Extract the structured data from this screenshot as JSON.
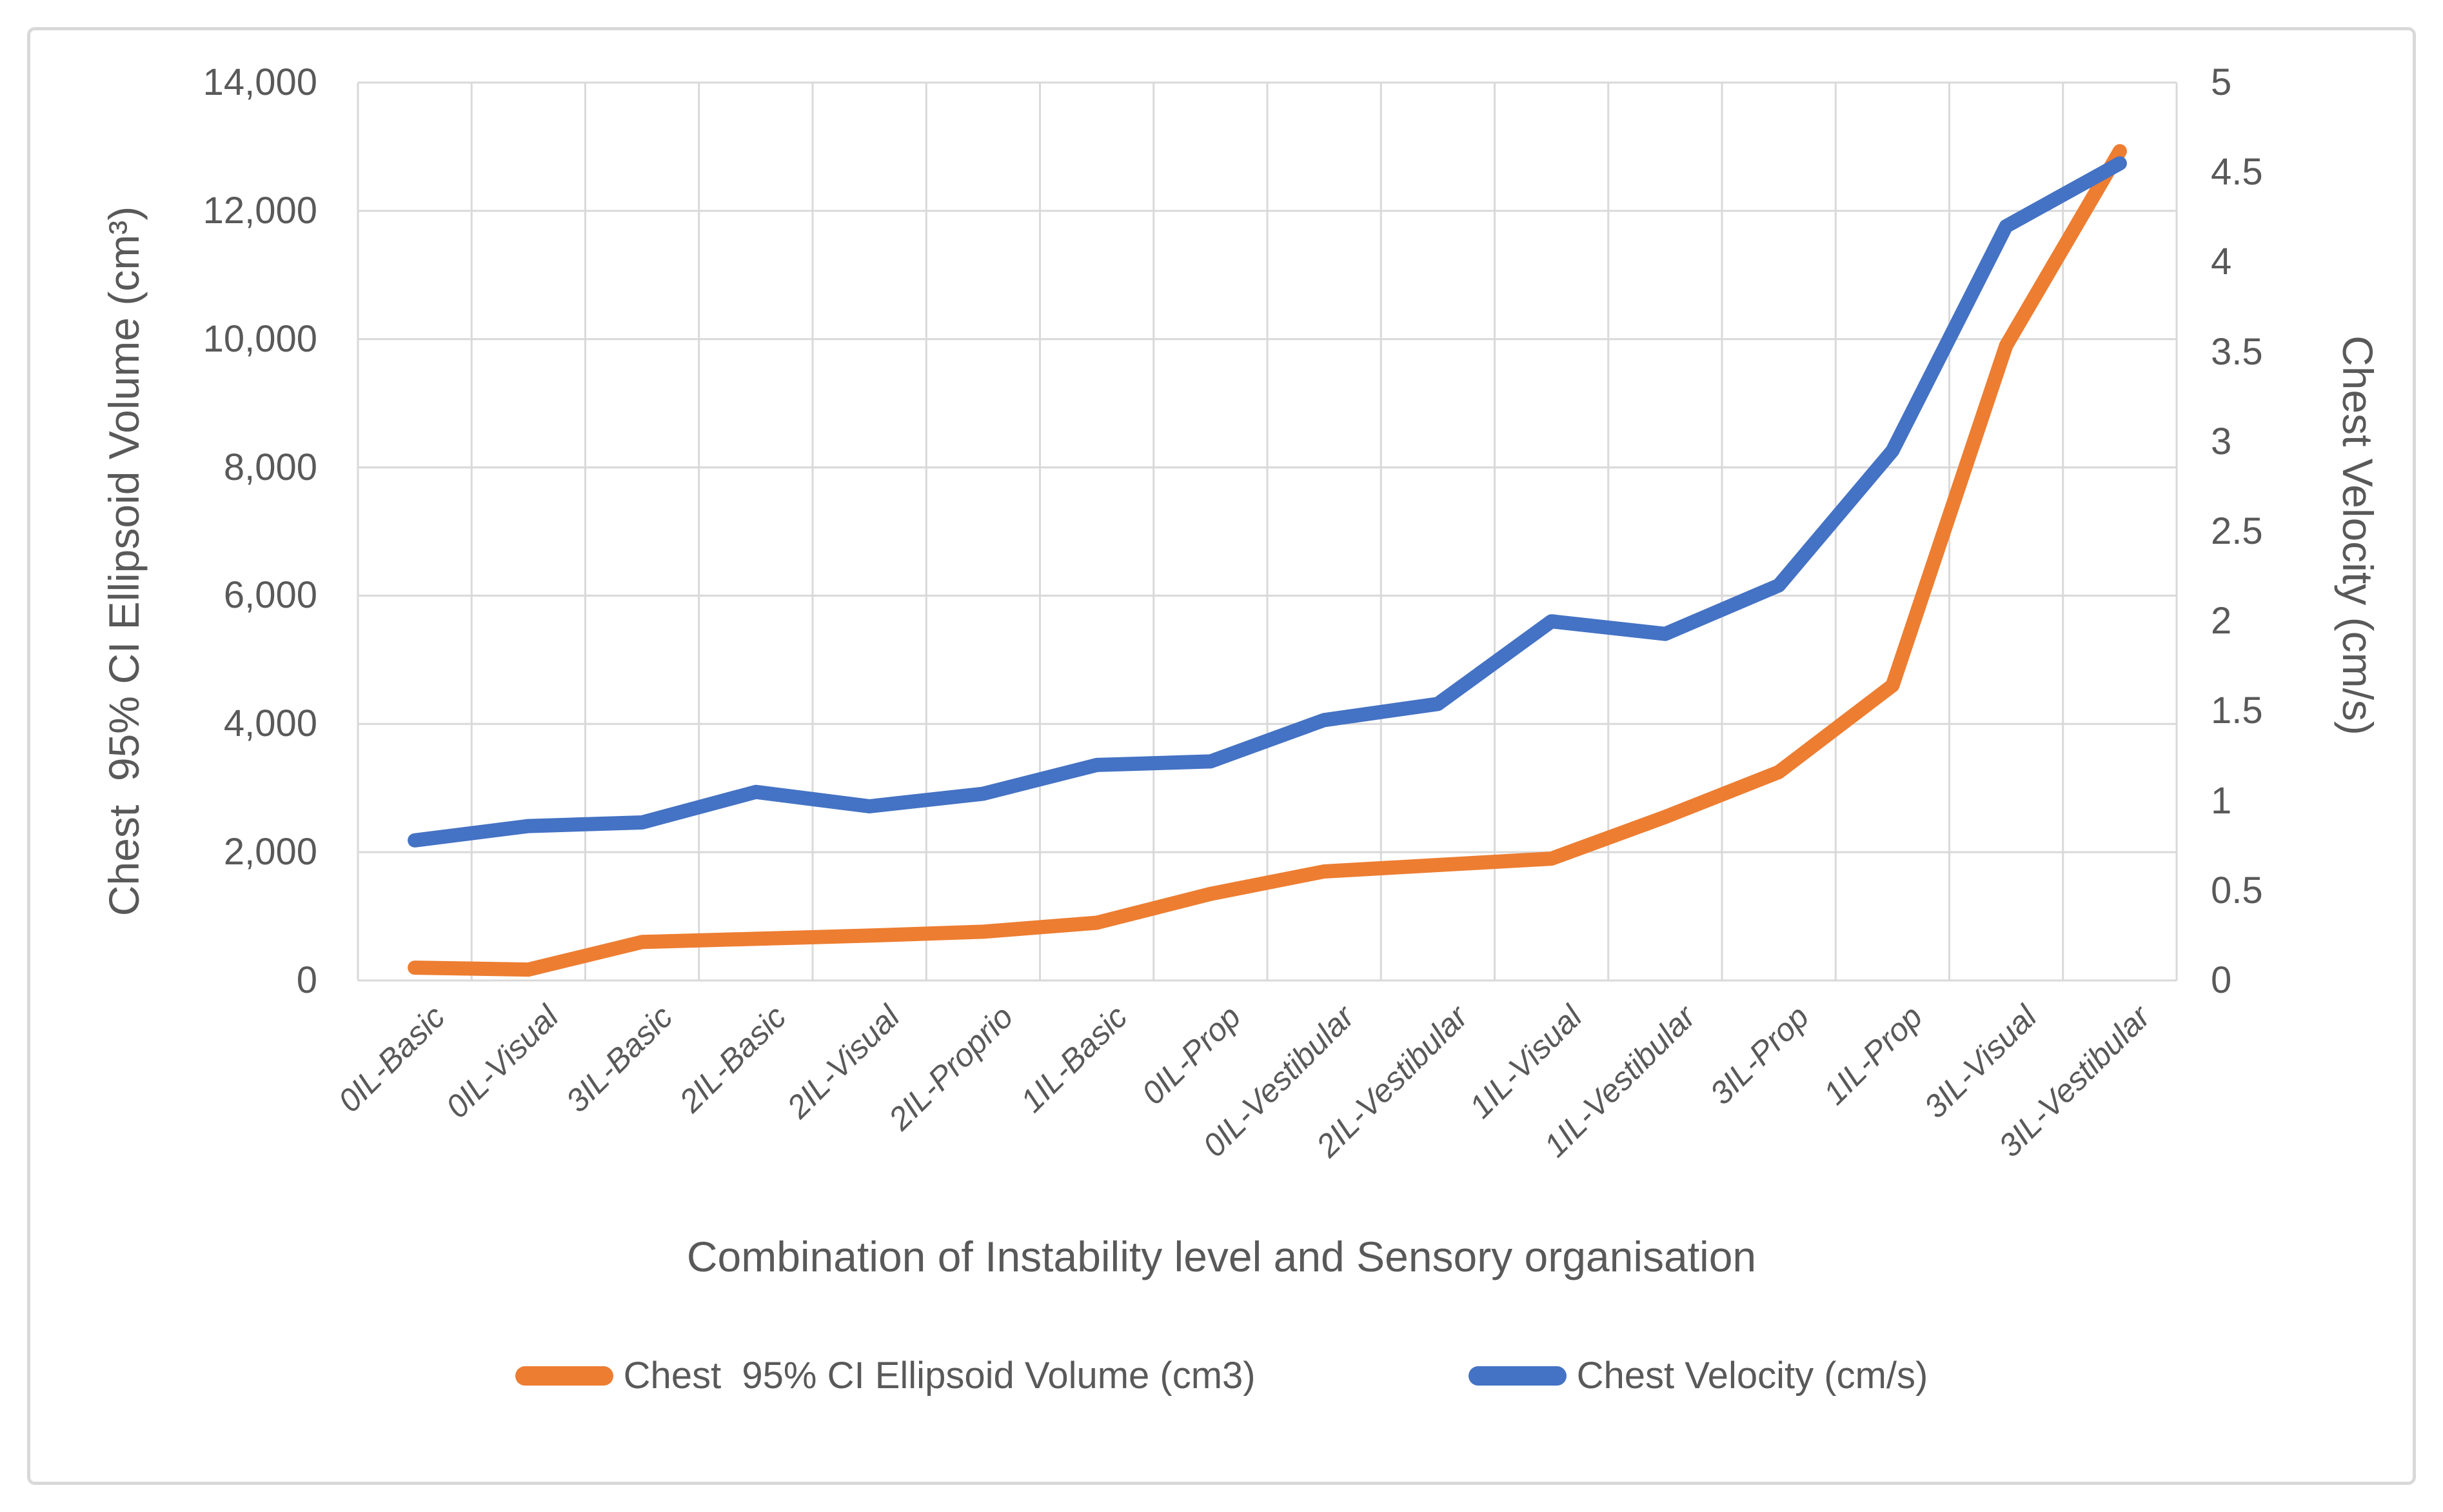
{
  "chart_data": {
    "type": "line",
    "categories": [
      "0IL-Basic",
      "0IL-Visual",
      "3IL-Basic",
      "2IL-Basic",
      "2IL-Visual",
      "2IL-Proprio",
      "1IL-Basic",
      "0IL-Prop",
      "0IL-Vestibular",
      "2IL-Vestibular",
      "1IL-Visual",
      "1IL-Vestibular",
      "3IL-Prop",
      "1IL-Prop",
      "3IL-Visual",
      "3IL-Vestibular"
    ],
    "series": [
      {
        "name": "Chest  95% CI Ellipsoid Volume (cm3)",
        "axis": "left",
        "color": "#ED7D31",
        "values": [
          200,
          170,
          600,
          650,
          700,
          760,
          900,
          1350,
          1700,
          1800,
          1900,
          2550,
          3250,
          4600,
          9900,
          12930
        ]
      },
      {
        "name": "Chest Velocity (cm/s)",
        "axis": "right",
        "color": "#4472C4",
        "values": [
          0.78,
          0.86,
          0.88,
          1.05,
          0.97,
          1.04,
          1.2,
          1.22,
          1.45,
          1.54,
          2.0,
          1.93,
          2.2,
          2.95,
          4.2,
          4.55
        ]
      }
    ],
    "left_axis": {
      "title": "Chest  95% CI Ellipsoid Volume (cm³)",
      "min": 0,
      "max": 14000,
      "tick_step": 2000,
      "tick_labels": [
        "0",
        "2,000",
        "4,000",
        "6,000",
        "8,000",
        "10,000",
        "12,000",
        "14,000"
      ]
    },
    "right_axis": {
      "title": "Chest Velocity (cm/s)",
      "min": 0,
      "max": 5,
      "tick_step": 0.5,
      "tick_labels": [
        "0",
        "0.5",
        "1",
        "1.5",
        "2",
        "2.5",
        "3",
        "3.5",
        "4",
        "4.5",
        "5"
      ]
    },
    "x_axis": {
      "title": "Combination of Instability level and Sensory organisation"
    },
    "legend": {
      "position": "bottom",
      "items": [
        {
          "label": "Chest  95% CI Ellipsoid Volume (cm3)",
          "color": "#ED7D31"
        },
        {
          "label": "Chest Velocity (cm/s)",
          "color": "#4472C4"
        }
      ]
    },
    "grid": {
      "horizontal": true,
      "vertical": true,
      "color": "#D9D9D9"
    }
  },
  "styles": {
    "background": "#FFFFFF",
    "text_color": "#595959",
    "frame_color": "#D9D9D9",
    "gridline_color": "#D9D9D9"
  }
}
